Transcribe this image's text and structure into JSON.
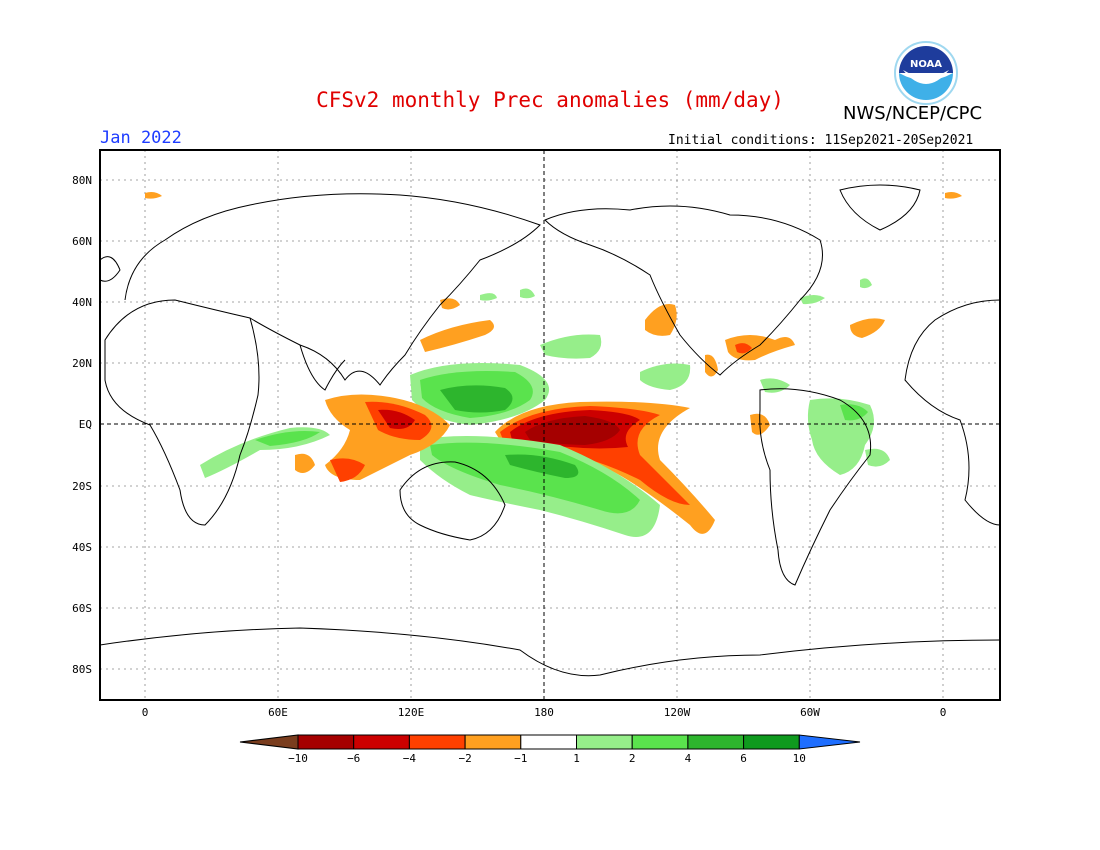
{
  "header": {
    "title": "CFSv2 monthly Prec anomalies (mm/day)",
    "month": "Jan 2022",
    "agency": "NWS/NCEP/CPC",
    "initial_conditions": "Initial conditions: 11Sep2021-20Sep2021",
    "logo_text": "NOAA"
  },
  "map": {
    "lat_labels": [
      "80N",
      "60N",
      "40N",
      "20N",
      "EQ",
      "20S",
      "40S",
      "60S",
      "80S"
    ],
    "lon_labels": [
      "0",
      "60E",
      "120E",
      "180",
      "120W",
      "60W",
      "0"
    ]
  },
  "colorbar": {
    "labels": [
      "-10",
      "-6",
      "-4",
      "-2",
      "-1",
      "1",
      "2",
      "4",
      "6",
      "10"
    ],
    "colors": [
      "#7a3d1e",
      "#a50000",
      "#cc0000",
      "#ff4000",
      "#ffa020",
      "#ffffff",
      "#96ee8a",
      "#5ae34d",
      "#2db52d",
      "#0f9a1e",
      "#1e6eff"
    ]
  }
}
